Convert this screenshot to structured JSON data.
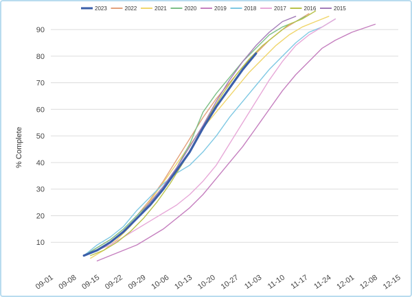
{
  "chart_data": {
    "type": "line",
    "title": "",
    "xlabel": "",
    "ylabel": "% Complete",
    "ylim": [
      0,
      97
    ],
    "yticks": [
      10,
      20,
      30,
      40,
      50,
      60,
      70,
      80,
      90
    ],
    "grid": "horizontal",
    "legend_position": "top",
    "x_ticks": [
      "09-01",
      "09-08",
      "09-15",
      "09-22",
      "09-29",
      "10-06",
      "10-13",
      "10-20",
      "10-27",
      "11-03",
      "11-10",
      "11-17",
      "11-24",
      "12-01",
      "12-08",
      "12-15"
    ],
    "series": [
      {
        "name": "2023",
        "color": "#3b5fa9",
        "emphasis": true,
        "points": [
          [
            "09-11",
            5
          ],
          [
            "09-15",
            7
          ],
          [
            "09-19",
            10
          ],
          [
            "09-23",
            14
          ],
          [
            "09-27",
            19
          ],
          [
            "10-01",
            24
          ],
          [
            "10-05",
            30
          ],
          [
            "10-09",
            37
          ],
          [
            "10-13",
            44
          ],
          [
            "10-17",
            53
          ],
          [
            "10-21",
            61
          ],
          [
            "10-25",
            68
          ],
          [
            "10-29",
            75
          ],
          [
            "11-02",
            81
          ]
        ]
      },
      {
        "name": "2022",
        "color": "#e3a07a",
        "points": [
          [
            "09-11",
            5
          ],
          [
            "09-15",
            8
          ],
          [
            "09-19",
            11
          ],
          [
            "09-23",
            15
          ],
          [
            "09-27",
            20
          ],
          [
            "10-01",
            26
          ],
          [
            "10-05",
            33
          ],
          [
            "10-09",
            41
          ],
          [
            "10-13",
            49
          ],
          [
            "10-17",
            57
          ],
          [
            "10-21",
            64
          ],
          [
            "10-25",
            70
          ],
          [
            "10-29",
            76
          ],
          [
            "11-02",
            81
          ],
          [
            "11-06",
            86
          ],
          [
            "11-10",
            90
          ],
          [
            "11-14",
            93
          ],
          [
            "11-18",
            96
          ]
        ]
      },
      {
        "name": "2021",
        "color": "#f0d66c",
        "points": [
          [
            "09-13",
            4
          ],
          [
            "09-17",
            7
          ],
          [
            "09-21",
            11
          ],
          [
            "09-25",
            16
          ],
          [
            "09-29",
            22
          ],
          [
            "10-03",
            29
          ],
          [
            "10-07",
            36
          ],
          [
            "10-11",
            43
          ],
          [
            "10-15",
            50
          ],
          [
            "10-19",
            56
          ],
          [
            "10-23",
            62
          ],
          [
            "10-27",
            68
          ],
          [
            "10-31",
            74
          ],
          [
            "11-04",
            79
          ],
          [
            "11-08",
            84
          ],
          [
            "11-12",
            88
          ],
          [
            "11-16",
            91
          ],
          [
            "11-20",
            93
          ],
          [
            "11-24",
            95
          ]
        ]
      },
      {
        "name": "2020",
        "color": "#7cbf86",
        "points": [
          [
            "09-11",
            5
          ],
          [
            "09-15",
            8
          ],
          [
            "09-19",
            11
          ],
          [
            "09-23",
            15
          ],
          [
            "09-27",
            20
          ],
          [
            "10-01",
            25
          ],
          [
            "10-05",
            31
          ],
          [
            "10-09",
            38
          ],
          [
            "10-13",
            47
          ],
          [
            "10-17",
            59
          ],
          [
            "10-21",
            66
          ],
          [
            "10-25",
            72
          ],
          [
            "10-29",
            78
          ],
          [
            "11-02",
            83
          ],
          [
            "11-06",
            88
          ],
          [
            "11-10",
            91
          ],
          [
            "11-14",
            93
          ],
          [
            "11-17",
            95
          ]
        ]
      },
      {
        "name": "2019",
        "color": "#c57fbf",
        "points": [
          [
            "09-15",
            3
          ],
          [
            "09-19",
            5
          ],
          [
            "09-23",
            7
          ],
          [
            "09-27",
            9
          ],
          [
            "10-01",
            12
          ],
          [
            "10-05",
            15
          ],
          [
            "10-09",
            19
          ],
          [
            "10-13",
            23
          ],
          [
            "10-17",
            28
          ],
          [
            "10-21",
            34
          ],
          [
            "10-25",
            40
          ],
          [
            "10-29",
            46
          ],
          [
            "11-02",
            53
          ],
          [
            "11-06",
            60
          ],
          [
            "11-10",
            67
          ],
          [
            "11-14",
            73
          ],
          [
            "11-18",
            78
          ],
          [
            "11-22",
            83
          ],
          [
            "11-26",
            86
          ],
          [
            "12-01",
            89
          ],
          [
            "12-08",
            92
          ]
        ]
      },
      {
        "name": "2018",
        "color": "#7ec8e3",
        "points": [
          [
            "09-11",
            5
          ],
          [
            "09-15",
            9
          ],
          [
            "09-19",
            12
          ],
          [
            "09-23",
            16
          ],
          [
            "09-27",
            22
          ],
          [
            "10-01",
            27
          ],
          [
            "10-05",
            32
          ],
          [
            "10-09",
            36
          ],
          [
            "10-13",
            39
          ],
          [
            "10-17",
            44
          ],
          [
            "10-21",
            50
          ],
          [
            "10-25",
            57
          ],
          [
            "10-29",
            63
          ],
          [
            "11-02",
            69
          ],
          [
            "11-06",
            75
          ],
          [
            "11-10",
            80
          ],
          [
            "11-14",
            85
          ],
          [
            "11-18",
            89
          ],
          [
            "11-22",
            91
          ],
          [
            "11-26",
            94
          ]
        ]
      },
      {
        "name": "2017",
        "color": "#e7a8d8",
        "points": [
          [
            "09-11",
            5
          ],
          [
            "09-15",
            7
          ],
          [
            "09-19",
            9
          ],
          [
            "09-23",
            12
          ],
          [
            "09-27",
            15
          ],
          [
            "10-01",
            18
          ],
          [
            "10-05",
            21
          ],
          [
            "10-09",
            24
          ],
          [
            "10-13",
            28
          ],
          [
            "10-17",
            33
          ],
          [
            "10-21",
            39
          ],
          [
            "10-25",
            47
          ],
          [
            "10-29",
            55
          ],
          [
            "11-02",
            63
          ],
          [
            "11-06",
            71
          ],
          [
            "11-10",
            78
          ],
          [
            "11-14",
            84
          ],
          [
            "11-18",
            88
          ],
          [
            "11-22",
            91
          ],
          [
            "11-26",
            94
          ]
        ]
      },
      {
        "name": "2016",
        "color": "#b8c24a",
        "points": [
          [
            "09-13",
            5
          ],
          [
            "09-17",
            7
          ],
          [
            "09-21",
            10
          ],
          [
            "09-25",
            14
          ],
          [
            "09-29",
            19
          ],
          [
            "10-03",
            25
          ],
          [
            "10-07",
            32
          ],
          [
            "10-11",
            40
          ],
          [
            "10-15",
            49
          ],
          [
            "10-19",
            58
          ],
          [
            "10-23",
            66
          ],
          [
            "10-27",
            73
          ],
          [
            "10-31",
            79
          ],
          [
            "11-04",
            84
          ],
          [
            "11-08",
            88
          ],
          [
            "11-12",
            92
          ],
          [
            "11-16",
            94
          ],
          [
            "11-20",
            97
          ]
        ]
      },
      {
        "name": "2015",
        "color": "#a27bb8",
        "points": [
          [
            "09-11",
            5
          ],
          [
            "09-15",
            7
          ],
          [
            "09-19",
            10
          ],
          [
            "09-23",
            14
          ],
          [
            "09-27",
            19
          ],
          [
            "10-01",
            25
          ],
          [
            "10-05",
            31
          ],
          [
            "10-09",
            38
          ],
          [
            "10-13",
            46
          ],
          [
            "10-17",
            54
          ],
          [
            "10-21",
            63
          ],
          [
            "10-25",
            71
          ],
          [
            "10-29",
            78
          ],
          [
            "11-02",
            84
          ],
          [
            "11-06",
            89
          ],
          [
            "11-10",
            93
          ],
          [
            "11-14",
            95
          ]
        ]
      }
    ]
  }
}
